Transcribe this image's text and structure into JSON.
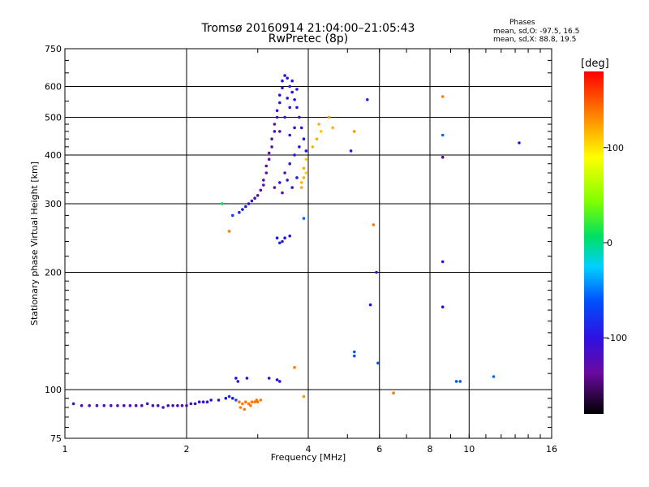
{
  "title_line1": "Tromsø 20160914 21:04:00–21:05:43",
  "title_line2": "RwPretec (8p)",
  "stats": {
    "heading": "Phases",
    "line_o": "mean, sd,O: -97.5, 16.5",
    "line_x": "mean, sd,X:  88.8, 19.5"
  },
  "colorbar": {
    "title": "[deg]",
    "ticks": [
      "100",
      "0",
      "-100"
    ],
    "tick_values": [
      100,
      0,
      -100
    ],
    "range": [
      -180,
      180
    ]
  },
  "chart_data": {
    "type": "scatter",
    "xlabel": "Frequency [MHz]",
    "ylabel": "Stationary phase Virtual Height [km]",
    "x_scale": "log",
    "y_scale": "log",
    "xlim": [
      1,
      16
    ],
    "ylim": [
      75,
      750
    ],
    "x_ticks": [
      1,
      2,
      4,
      6,
      8,
      10,
      16
    ],
    "x_tick_labels": [
      "1",
      "2",
      "4",
      "6",
      "8",
      "10",
      "16"
    ],
    "y_ticks": [
      75,
      100,
      200,
      300,
      400,
      500,
      600,
      750
    ],
    "y_tick_labels": [
      "75",
      "100",
      "200",
      "300",
      "400",
      "500",
      "600",
      "750"
    ],
    "grid": true,
    "color_encodes": "phase [deg]",
    "points": [
      [
        1.05,
        92,
        -110
      ],
      [
        1.1,
        91,
        -120
      ],
      [
        1.15,
        91,
        -125
      ],
      [
        1.2,
        91,
        -120
      ],
      [
        1.25,
        91,
        -125
      ],
      [
        1.3,
        91,
        -120
      ],
      [
        1.35,
        91,
        -130
      ],
      [
        1.4,
        91,
        -120
      ],
      [
        1.45,
        91,
        -125
      ],
      [
        1.5,
        91,
        -120
      ],
      [
        1.55,
        91,
        -125
      ],
      [
        1.6,
        92,
        -120
      ],
      [
        1.65,
        91,
        -125
      ],
      [
        1.7,
        91,
        -120
      ],
      [
        1.75,
        90,
        -115
      ],
      [
        1.8,
        91,
        -120
      ],
      [
        1.85,
        91,
        -125
      ],
      [
        1.9,
        91,
        -120
      ],
      [
        1.95,
        91,
        -120
      ],
      [
        2.0,
        91,
        -125
      ],
      [
        2.05,
        92,
        -115
      ],
      [
        2.1,
        92,
        -110
      ],
      [
        2.15,
        93,
        -110
      ],
      [
        2.2,
        93,
        -105
      ],
      [
        2.25,
        93,
        -110
      ],
      [
        2.3,
        94,
        -100
      ],
      [
        2.4,
        94,
        -105
      ],
      [
        2.5,
        95,
        -100
      ],
      [
        2.6,
        95,
        -100
      ],
      [
        2.55,
        96,
        -90
      ],
      [
        2.65,
        94,
        -70
      ],
      [
        2.7,
        93,
        140
      ],
      [
        2.75,
        92,
        140
      ],
      [
        2.8,
        93,
        140
      ],
      [
        2.85,
        92,
        140
      ],
      [
        2.9,
        93,
        140
      ],
      [
        2.95,
        93,
        140
      ],
      [
        3.0,
        93,
        140
      ],
      [
        3.05,
        94,
        140
      ],
      [
        2.72,
        90,
        140
      ],
      [
        2.78,
        89,
        140
      ],
      [
        2.88,
        91,
        140
      ],
      [
        2.98,
        94,
        140
      ],
      [
        2.65,
        107,
        -100
      ],
      [
        2.68,
        105,
        -110
      ],
      [
        2.82,
        107,
        -100
      ],
      [
        3.2,
        107,
        -110
      ],
      [
        3.35,
        106,
        -100
      ],
      [
        3.4,
        105,
        -110
      ],
      [
        3.7,
        114,
        140
      ],
      [
        3.9,
        96,
        130
      ],
      [
        2.6,
        280,
        -80
      ],
      [
        2.7,
        285,
        -90
      ],
      [
        2.75,
        290,
        -100
      ],
      [
        2.8,
        295,
        -100
      ],
      [
        2.85,
        300,
        -110
      ],
      [
        2.9,
        305,
        -120
      ],
      [
        2.95,
        310,
        -120
      ],
      [
        3.0,
        315,
        -130
      ],
      [
        3.05,
        325,
        -130
      ],
      [
        3.1,
        335,
        -140
      ],
      [
        3.1,
        345,
        -130
      ],
      [
        3.15,
        360,
        -140
      ],
      [
        3.15,
        375,
        -130
      ],
      [
        3.2,
        390,
        -140
      ],
      [
        3.2,
        405,
        -140
      ],
      [
        3.25,
        420,
        -130
      ],
      [
        3.25,
        440,
        -130
      ],
      [
        3.3,
        460,
        -120
      ],
      [
        3.3,
        480,
        -130
      ],
      [
        3.35,
        500,
        -120
      ],
      [
        3.35,
        520,
        -110
      ],
      [
        3.4,
        545,
        -110
      ],
      [
        3.4,
        570,
        -100
      ],
      [
        3.45,
        595,
        -110
      ],
      [
        3.45,
        620,
        -100
      ],
      [
        3.5,
        640,
        -100
      ],
      [
        3.55,
        630,
        -110
      ],
      [
        3.6,
        600,
        -110
      ],
      [
        3.65,
        580,
        -110
      ],
      [
        3.7,
        555,
        -100
      ],
      [
        3.75,
        530,
        -110
      ],
      [
        3.8,
        500,
        -110
      ],
      [
        3.85,
        470,
        -110
      ],
      [
        3.9,
        440,
        -100
      ],
      [
        3.95,
        410,
        -100
      ],
      [
        3.4,
        340,
        -110
      ],
      [
        3.5,
        360,
        -120
      ],
      [
        3.6,
        380,
        -110
      ],
      [
        3.7,
        400,
        -100
      ],
      [
        3.8,
        420,
        -100
      ],
      [
        3.3,
        330,
        -140
      ],
      [
        3.45,
        320,
        -130
      ],
      [
        3.55,
        345,
        -120
      ],
      [
        3.65,
        330,
        -110
      ],
      [
        3.75,
        350,
        -100
      ],
      [
        3.6,
        450,
        -100
      ],
      [
        3.7,
        470,
        -110
      ],
      [
        3.5,
        500,
        -120
      ],
      [
        3.4,
        460,
        -130
      ],
      [
        3.6,
        530,
        -110
      ],
      [
        3.75,
        590,
        -100
      ],
      [
        3.55,
        560,
        -110
      ],
      [
        3.65,
        620,
        -100
      ],
      [
        3.35,
        245,
        -100
      ],
      [
        3.45,
        240,
        -110
      ],
      [
        3.5,
        245,
        -100
      ],
      [
        3.6,
        248,
        -110
      ],
      [
        3.4,
        238,
        -90
      ],
      [
        3.85,
        330,
        120
      ],
      [
        3.9,
        350,
        120
      ],
      [
        3.95,
        360,
        110
      ],
      [
        3.9,
        370,
        120
      ],
      [
        3.95,
        390,
        110
      ],
      [
        3.85,
        340,
        115
      ],
      [
        4.1,
        420,
        120
      ],
      [
        4.2,
        440,
        120
      ],
      [
        4.3,
        460,
        110
      ],
      [
        4.25,
        480,
        120
      ],
      [
        4.5,
        500,
        130
      ],
      [
        4.6,
        470,
        120
      ],
      [
        5.2,
        460,
        130
      ],
      [
        5.1,
        410,
        -100
      ],
      [
        5.6,
        555,
        -90
      ],
      [
        3.9,
        275,
        -60
      ],
      [
        2.45,
        300,
        0
      ],
      [
        2.55,
        255,
        140
      ],
      [
        5.8,
        265,
        140
      ],
      [
        5.9,
        200,
        -100
      ],
      [
        5.7,
        165,
        -100
      ],
      [
        5.2,
        125,
        -70
      ],
      [
        5.2,
        122,
        -70
      ],
      [
        5.95,
        117,
        -70
      ],
      [
        6.5,
        98,
        140
      ],
      [
        8.6,
        565,
        140
      ],
      [
        8.6,
        450,
        -60
      ],
      [
        8.6,
        395,
        -150
      ],
      [
        8.6,
        213,
        -100
      ],
      [
        8.6,
        163,
        -100
      ],
      [
        9.3,
        105,
        -70
      ],
      [
        9.5,
        105,
        -70
      ],
      [
        11.5,
        108,
        -60
      ],
      [
        13.3,
        430,
        -100
      ]
    ]
  }
}
